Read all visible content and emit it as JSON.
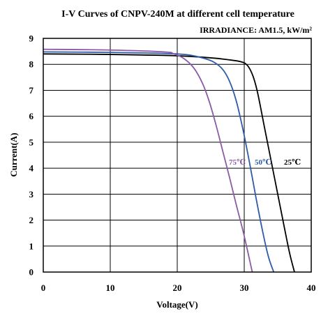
{
  "chart_data": {
    "type": "line",
    "title": "I-V Curves of CNPV-240M at different cell temperature",
    "subtitle": "IRRADIANCE:  AM1.5, kW/m²",
    "xlabel": "Voltage(V)",
    "ylabel": "Current(A)",
    "xlim": [
      0,
      40
    ],
    "ylim": [
      0,
      9
    ],
    "xticks": [
      "0",
      "10",
      "20",
      "30",
      "40"
    ],
    "yticks": [
      "0",
      "1",
      "2",
      "3",
      "4",
      "5",
      "6",
      "7",
      "8",
      "9"
    ],
    "grid": true,
    "series": [
      {
        "name": "25℃",
        "color": "#000000",
        "x": [
          0,
          10,
          20,
          25,
          27.5,
          29.5,
          30.5,
          31.3,
          32,
          33,
          34,
          35,
          36,
          36.8,
          37.5
        ],
        "y": [
          8.4,
          8.38,
          8.33,
          8.25,
          8.18,
          8.1,
          7.95,
          7.55,
          6.9,
          5.6,
          4.3,
          3.0,
          1.7,
          0.7,
          0
        ]
      },
      {
        "name": "50℃",
        "color": "#2f5aa6",
        "x": [
          0,
          10,
          17,
          20,
          22,
          24,
          25.5,
          26.8,
          27.8,
          28.8,
          29.8,
          30.8,
          31.8,
          32.8,
          33.6,
          34.4
        ],
        "y": [
          8.48,
          8.46,
          8.43,
          8.4,
          8.35,
          8.23,
          8.08,
          7.8,
          7.35,
          6.6,
          5.5,
          4.2,
          2.8,
          1.5,
          0.6,
          0
        ]
      },
      {
        "name": "75℃",
        "color": "#8a5aa8",
        "x": [
          0,
          10,
          18,
          19.5,
          21,
          22.5,
          23.8,
          24.8,
          25.8,
          26.8,
          27.8,
          28.8,
          29.8,
          30.6,
          31.2
        ],
        "y": [
          8.58,
          8.55,
          8.48,
          8.4,
          8.22,
          7.85,
          7.25,
          6.55,
          5.65,
          4.65,
          3.65,
          2.6,
          1.6,
          0.7,
          0
        ]
      }
    ]
  }
}
